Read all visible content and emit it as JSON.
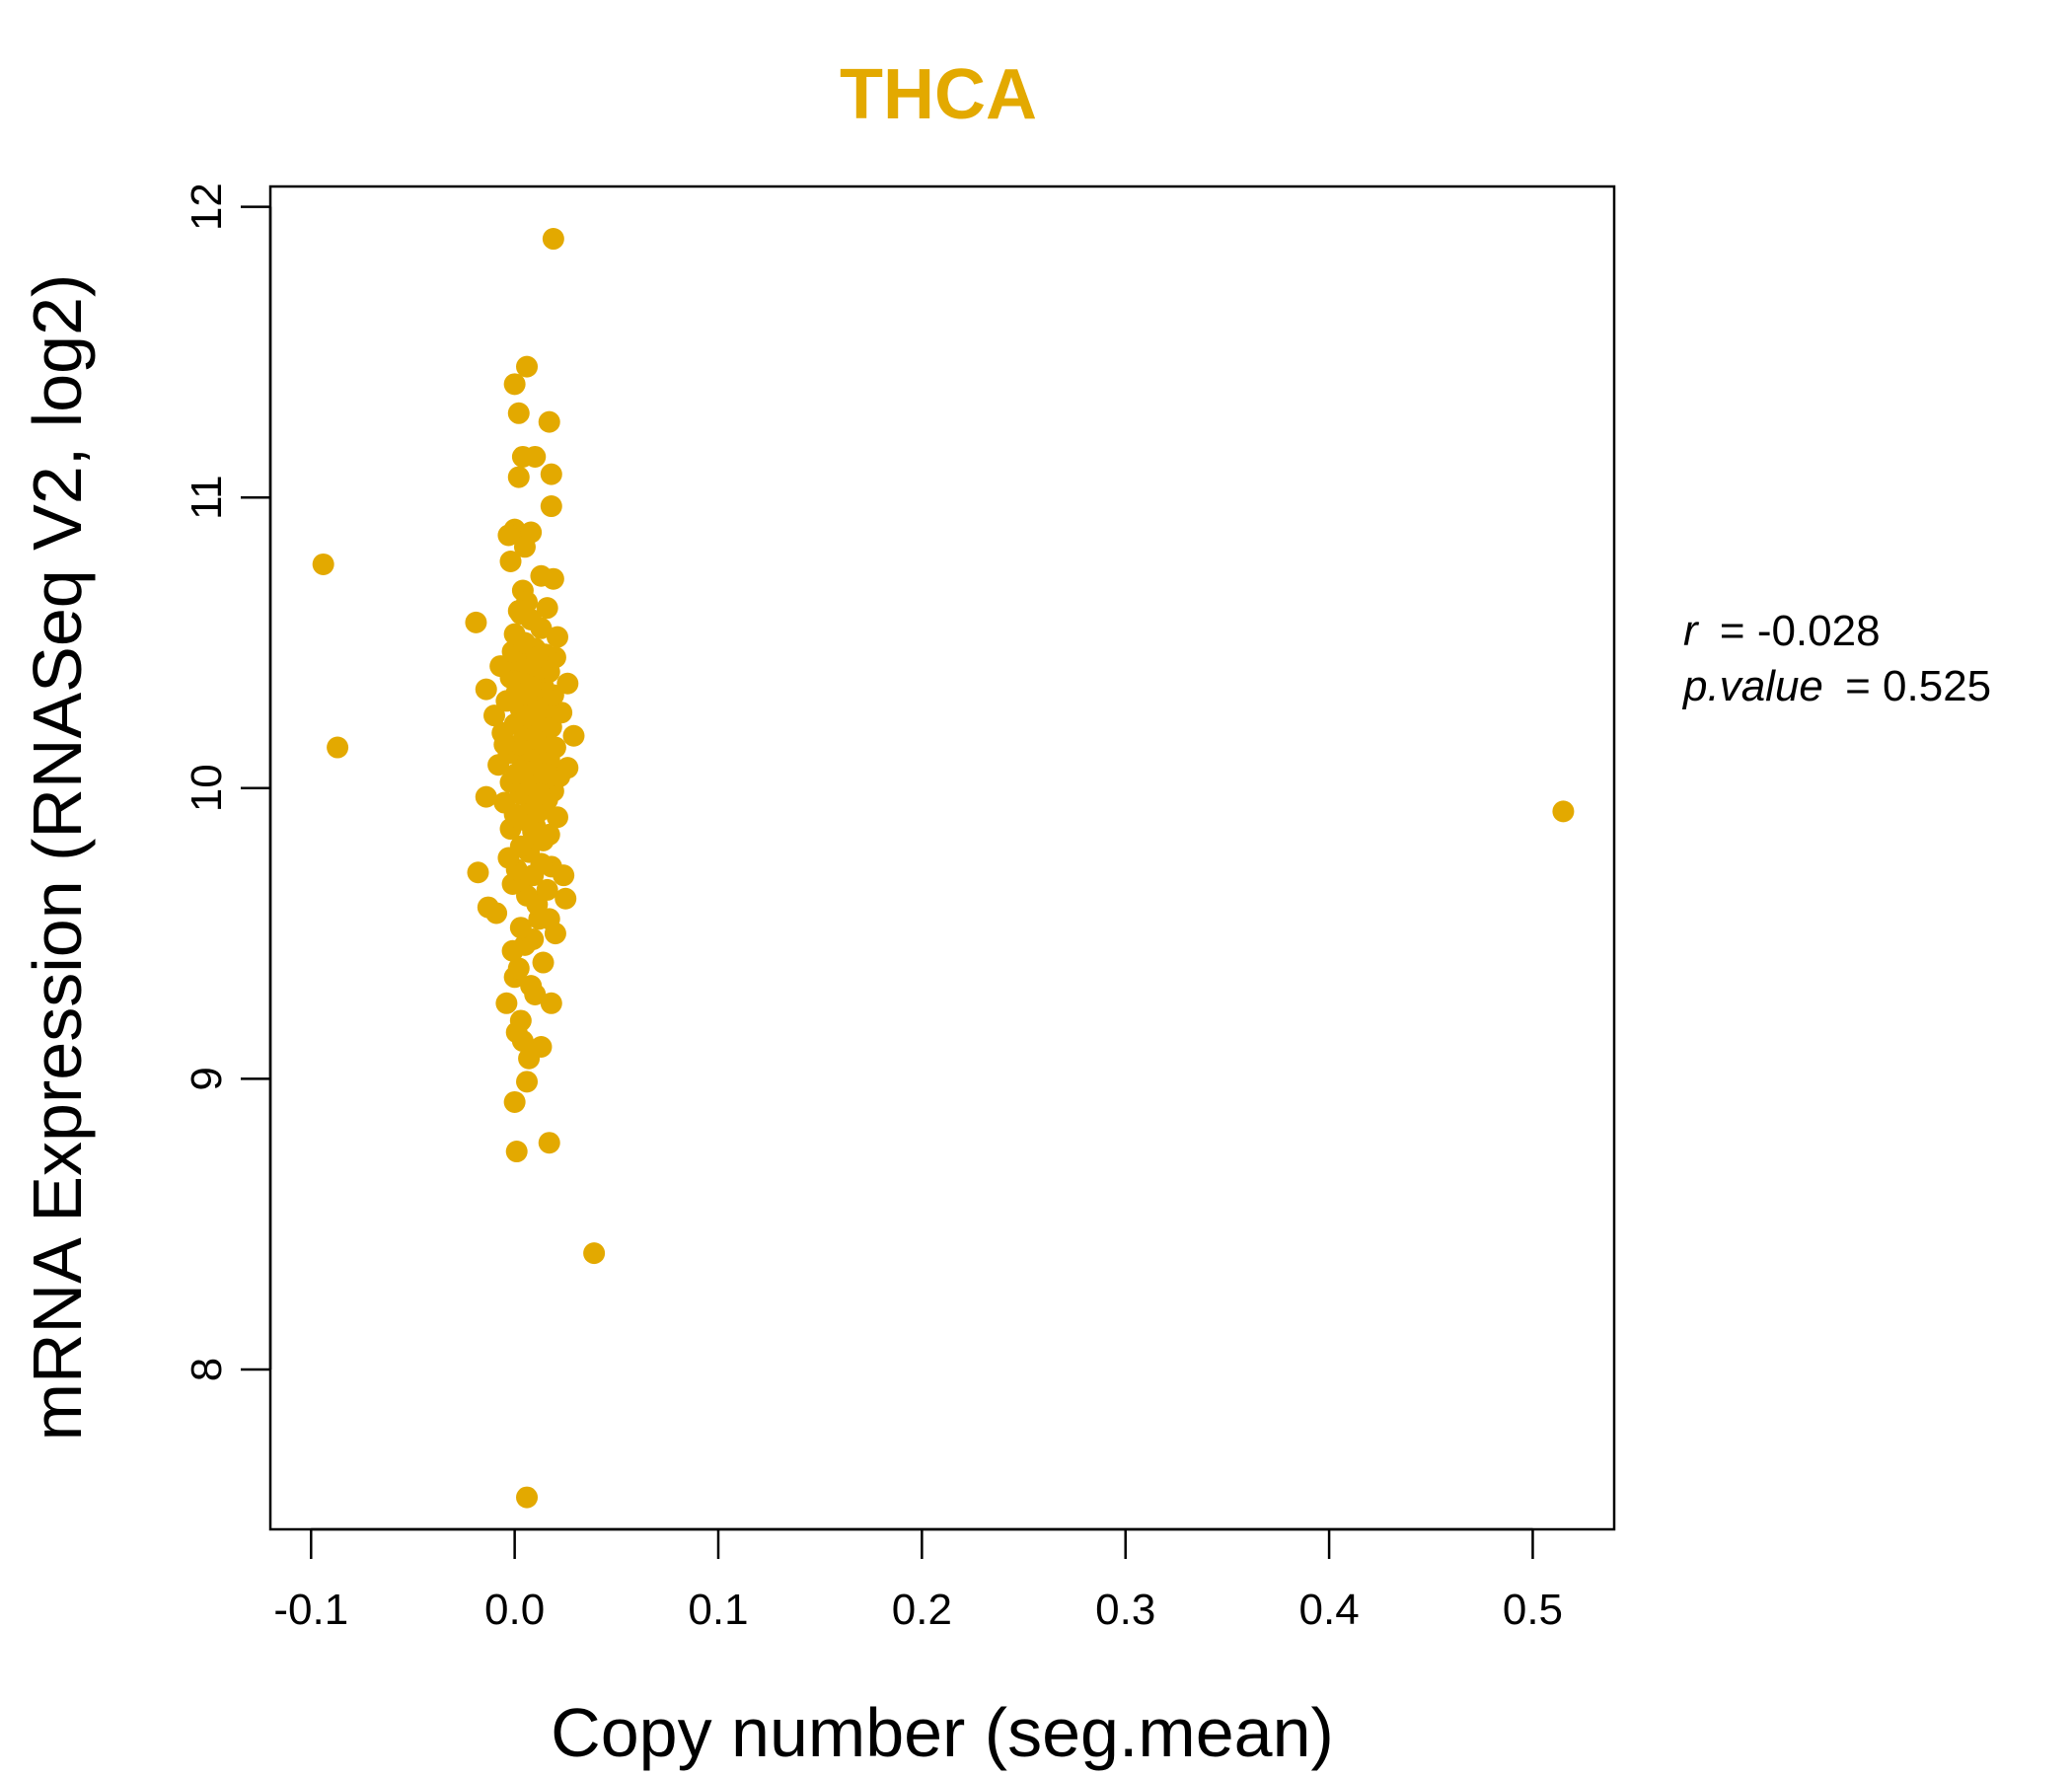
{
  "chart_data": {
    "type": "scatter",
    "title": "THCA",
    "xlabel": "Copy number (seg.mean)",
    "ylabel": "mRNA Expression (RNASeq V2, log2)",
    "xlim": [
      -0.12,
      0.54
    ],
    "ylim": [
      7.45,
      12.07
    ],
    "xticks": [
      -0.1,
      0.0,
      0.1,
      0.2,
      0.3,
      0.4,
      0.5
    ],
    "xtick_labels": [
      "-0.1",
      "0.0",
      "0.1",
      "0.2",
      "0.3",
      "0.4",
      "0.5"
    ],
    "yticks": [
      8,
      9,
      10,
      11,
      12
    ],
    "ytick_labels": [
      "8",
      "9",
      "10",
      "11",
      "12"
    ],
    "grid": false,
    "point_color": "#E3A900",
    "stats": {
      "r_key": "r",
      "r_value": "-0.028",
      "p_key": "p.value",
      "p_value": "0.525"
    },
    "points": [
      [
        0.019,
        11.89
      ],
      [
        0.006,
        11.45
      ],
      [
        0.0,
        11.39
      ],
      [
        0.017,
        11.26
      ],
      [
        0.002,
        11.29
      ],
      [
        0.004,
        11.14
      ],
      [
        0.01,
        11.14
      ],
      [
        0.002,
        11.07
      ],
      [
        0.018,
        11.08
      ],
      [
        0.018,
        10.97
      ],
      [
        0.0,
        10.89
      ],
      [
        0.008,
        10.88
      ],
      [
        -0.003,
        10.87
      ],
      [
        0.005,
        10.83
      ],
      [
        -0.002,
        10.78
      ],
      [
        0.013,
        10.73
      ],
      [
        0.019,
        10.72
      ],
      [
        0.004,
        10.68
      ],
      [
        -0.094,
        10.77
      ],
      [
        -0.087,
        10.14
      ],
      [
        0.515,
        9.92
      ],
      [
        0.039,
        8.4
      ],
      [
        0.006,
        7.56
      ],
      [
        0.001,
        8.75
      ],
      [
        0.017,
        8.78
      ],
      [
        0.0,
        8.92
      ],
      [
        0.006,
        8.99
      ],
      [
        0.013,
        9.11
      ],
      [
        0.004,
        9.13
      ],
      [
        0.001,
        9.16
      ],
      [
        0.003,
        9.2
      ],
      [
        0.007,
        9.07
      ],
      [
        -0.004,
        9.26
      ],
      [
        0.018,
        9.26
      ],
      [
        0.01,
        9.29
      ],
      [
        0.008,
        9.32
      ],
      [
        0.0,
        9.35
      ],
      [
        0.002,
        9.38
      ],
      [
        0.014,
        9.4
      ],
      [
        -0.001,
        9.44
      ],
      [
        0.005,
        9.46
      ],
      [
        0.009,
        9.48
      ],
      [
        0.02,
        9.5
      ],
      [
        0.003,
        9.52
      ],
      [
        0.012,
        9.55
      ],
      [
        0.017,
        9.55
      ],
      [
        -0.009,
        9.57
      ],
      [
        -0.013,
        9.59
      ],
      [
        0.011,
        9.6
      ],
      [
        0.025,
        9.62
      ],
      [
        0.006,
        9.63
      ],
      [
        0.016,
        9.65
      ],
      [
        -0.001,
        9.67
      ],
      [
        0.004,
        9.68
      ],
      [
        0.009,
        9.7
      ],
      [
        0.024,
        9.7
      ],
      [
        -0.018,
        9.71
      ],
      [
        0.001,
        9.72
      ],
      [
        0.018,
        9.73
      ],
      [
        0.013,
        9.74
      ],
      [
        -0.003,
        9.76
      ],
      [
        0.007,
        9.78
      ],
      [
        0.003,
        9.8
      ],
      [
        0.014,
        9.82
      ],
      [
        0.017,
        9.84
      ],
      [
        -0.002,
        9.86
      ],
      [
        0.01,
        9.87
      ],
      [
        0.005,
        9.89
      ],
      [
        0.021,
        9.9
      ],
      [
        0.0,
        9.91
      ],
      [
        0.012,
        9.92
      ],
      [
        0.008,
        9.94
      ],
      [
        -0.005,
        9.95
      ],
      [
        0.016,
        9.96
      ],
      [
        -0.014,
        9.97
      ],
      [
        0.003,
        9.98
      ],
      [
        0.019,
        9.99
      ],
      [
        0.011,
        10.0
      ],
      [
        0.006,
        10.01
      ],
      [
        -0.002,
        10.02
      ],
      [
        0.014,
        10.03
      ],
      [
        0.022,
        10.04
      ],
      [
        0.001,
        10.05
      ],
      [
        0.009,
        10.06
      ],
      [
        0.026,
        10.07
      ],
      [
        -0.008,
        10.08
      ],
      [
        0.004,
        10.09
      ],
      [
        0.017,
        10.1
      ],
      [
        0.012,
        10.11
      ],
      [
        -0.003,
        10.12
      ],
      [
        0.007,
        10.13
      ],
      [
        0.02,
        10.14
      ],
      [
        0.002,
        10.15
      ],
      [
        0.015,
        10.16
      ],
      [
        0.01,
        10.17
      ],
      [
        0.029,
        10.18
      ],
      [
        -0.006,
        10.19
      ],
      [
        0.005,
        10.2
      ],
      [
        0.018,
        10.21
      ],
      [
        0.0,
        10.22
      ],
      [
        0.013,
        10.23
      ],
      [
        0.008,
        10.24
      ],
      [
        -0.01,
        10.25
      ],
      [
        0.023,
        10.26
      ],
      [
        0.003,
        10.27
      ],
      [
        0.016,
        10.28
      ],
      [
        0.011,
        10.29
      ],
      [
        -0.004,
        10.3
      ],
      [
        0.006,
        10.31
      ],
      [
        0.019,
        10.32
      ],
      [
        0.001,
        10.33
      ],
      [
        -0.014,
        10.34
      ],
      [
        0.014,
        10.35
      ],
      [
        0.026,
        10.36
      ],
      [
        0.009,
        10.37
      ],
      [
        -0.002,
        10.38
      ],
      [
        0.004,
        10.39
      ],
      [
        0.017,
        10.4
      ],
      [
        0.012,
        10.41
      ],
      [
        -0.007,
        10.42
      ],
      [
        0.007,
        10.43
      ],
      [
        0.002,
        10.44
      ],
      [
        0.02,
        10.45
      ],
      [
        0.015,
        10.46
      ],
      [
        -0.001,
        10.47
      ],
      [
        0.01,
        10.48
      ],
      [
        0.005,
        10.5
      ],
      [
        0.021,
        10.52
      ],
      [
        0.0,
        10.53
      ],
      [
        0.013,
        10.55
      ],
      [
        -0.019,
        10.57
      ],
      [
        0.008,
        10.58
      ],
      [
        0.003,
        10.6
      ],
      [
        0.016,
        10.62
      ],
      [
        0.006,
        10.64
      ],
      [
        0.002,
        10.61
      ],
      [
        0.011,
        10.45
      ],
      [
        0.004,
        10.05
      ],
      [
        0.009,
        9.85
      ],
      [
        0.006,
        10.25
      ],
      [
        -0.005,
        10.15
      ],
      [
        0.012,
        9.98
      ],
      [
        0.008,
        10.35
      ],
      [
        0.001,
        9.9
      ],
      [
        0.015,
        10.05
      ]
    ]
  }
}
